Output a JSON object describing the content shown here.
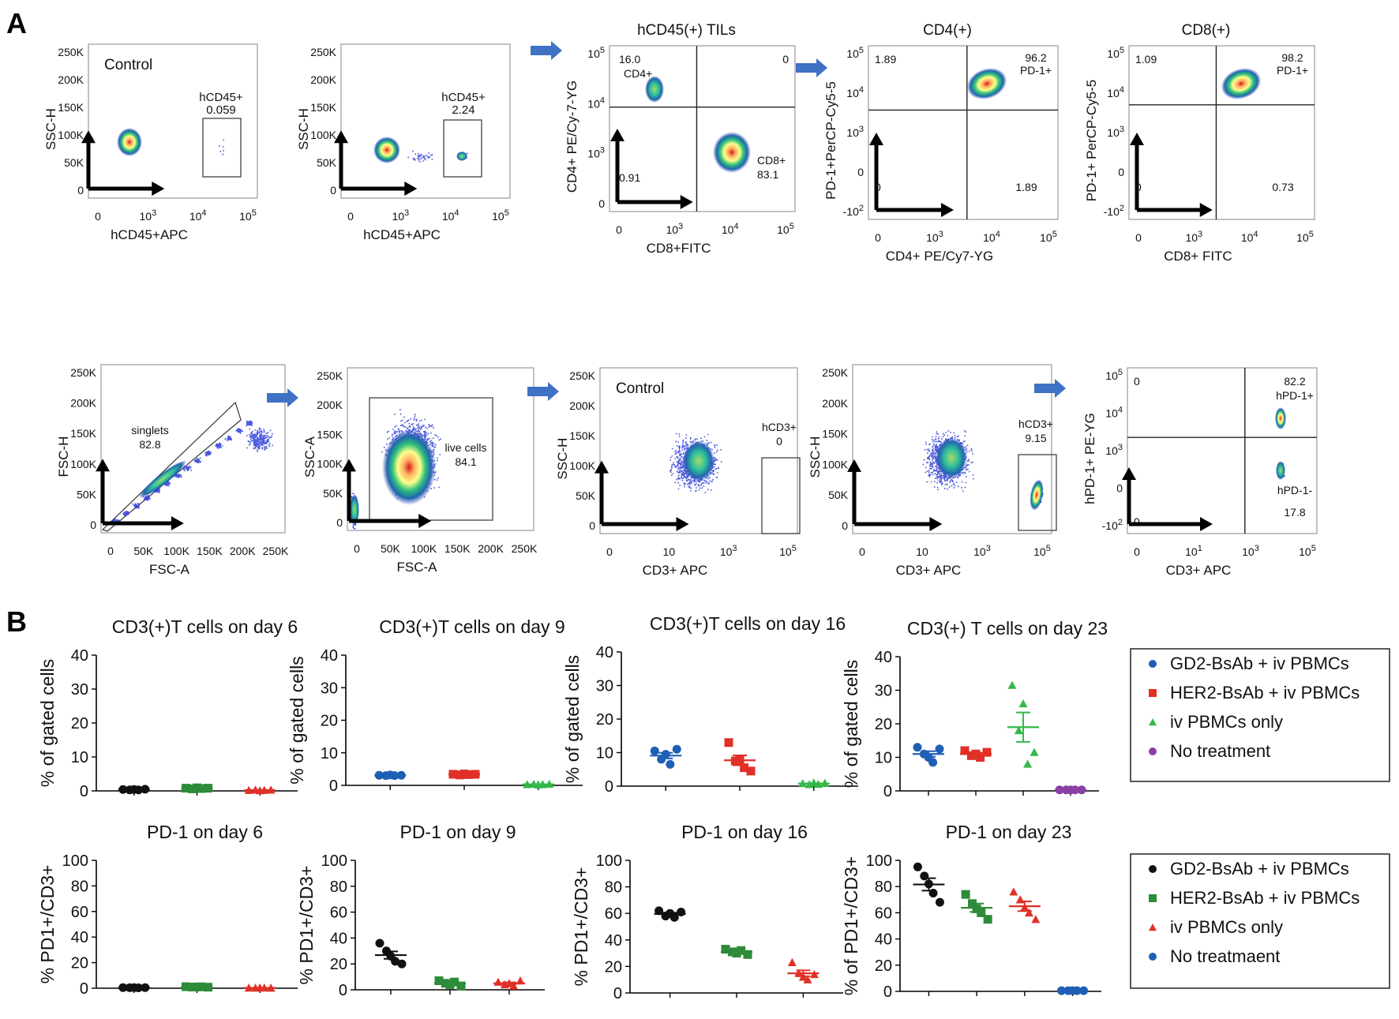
{
  "labels": {
    "panel_a": "A",
    "panel_b": "B"
  },
  "colors": {
    "blue": "#1f5fb4",
    "red": "#e03027",
    "green": "#2e8b3a",
    "green_light": "#35b84a",
    "purple": "#8a3fa6",
    "black": "#111111",
    "arrow": "#3f71c4"
  },
  "flow": {
    "row1": [
      {
        "title": "",
        "note": "Control",
        "xlabel": "hCD45+APC",
        "ylabel": "SSC-H",
        "yticks": [
          "250K",
          "200K",
          "150K",
          "100K",
          "50K",
          "0"
        ],
        "xticks": [
          "0",
          "10^3",
          "10^4",
          "10^5"
        ],
        "gates": [
          {
            "name": "hCD45+",
            "value": "0.059"
          }
        ]
      },
      {
        "title": "",
        "note": "",
        "xlabel": "hCD45+APC",
        "ylabel": "SSC-H",
        "yticks": [
          "250K",
          "200K",
          "150K",
          "100K",
          "50K",
          "0"
        ],
        "xticks": [
          "0",
          "10^3",
          "10^4",
          "10^5"
        ],
        "gates": [
          {
            "name": "hCD45+",
            "value": "2.24"
          }
        ]
      },
      {
        "title": "hCD45(+) TILs",
        "xlabel": "CD8+FITC",
        "ylabel": "CD4+ PE/Cy-7-YG",
        "yticks": [
          "10^5",
          "10^4",
          "10^3",
          "0"
        ],
        "xticks": [
          "0",
          "10^3",
          "10^4",
          "10^5"
        ],
        "quadrants": {
          "ul_value": "16.0",
          "ul_name": "CD4+",
          "ur_value": "0",
          "ll_value": "0.91",
          "lr_name": "CD8+",
          "lr_value": "83.1"
        }
      },
      {
        "title": "CD4(+)",
        "xlabel": "CD4+ PE/Cy7-YG",
        "ylabel": "PD-1+PerCP-Cy5-5",
        "yticks": [
          "10^5",
          "10^4",
          "10^3",
          "0",
          "-10^2"
        ],
        "xticks": [
          "0",
          "10^3",
          "10^4",
          "10^5"
        ],
        "quadrants": {
          "ul_value": "1.89",
          "ur_value": "96.2",
          "ur_name": "PD-1+",
          "ll_value": "0",
          "lr_value": "1.89"
        }
      },
      {
        "title": "CD8(+)",
        "xlabel": "CD8+ FITC",
        "ylabel": "PD-1+ PerCP-Cy5-5",
        "yticks": [
          "10^5",
          "10^4",
          "10^3",
          "0",
          "-10^2"
        ],
        "xticks": [
          "0",
          "10^3",
          "10^4",
          "10^5"
        ],
        "quadrants": {
          "ul_value": "1.09",
          "ur_value": "98.2",
          "ur_name": "PD-1+",
          "ll_value": "0",
          "lr_value": "0.73"
        }
      }
    ],
    "row2": [
      {
        "xlabel": "FSC-A",
        "ylabel": "FSC-H",
        "yticks": [
          "250K",
          "200K",
          "150K",
          "100K",
          "50K",
          "0"
        ],
        "xticks": [
          "0",
          "50K",
          "100K",
          "150K",
          "200K",
          "250K"
        ],
        "gates": [
          {
            "name": "singlets",
            "value": "82.8"
          }
        ]
      },
      {
        "xlabel": "FSC-A",
        "ylabel": "SSC-A",
        "yticks": [
          "250K",
          "200K",
          "150K",
          "100K",
          "50K",
          "0"
        ],
        "xticks": [
          "0",
          "50K",
          "100K",
          "150K",
          "200K",
          "250K"
        ],
        "gates": [
          {
            "name": "live cells",
            "value": "84.1"
          }
        ]
      },
      {
        "note": "Control",
        "xlabel": "CD3+ APC",
        "ylabel": "SSC-H",
        "yticks": [
          "250K",
          "200K",
          "150K",
          "100K",
          "50K",
          "0"
        ],
        "xticks": [
          "0",
          "10",
          "10^3",
          "10^5"
        ],
        "gates": [
          {
            "name": "hCD3+",
            "value": "0"
          }
        ]
      },
      {
        "xlabel": "CD3+ APC",
        "ylabel": "SSC-H",
        "yticks": [
          "250K",
          "200K",
          "150K",
          "100K",
          "50K",
          "0"
        ],
        "xticks": [
          "0",
          "10",
          "10^3",
          "10^5"
        ],
        "gates": [
          {
            "name": "hCD3+",
            "value": "9.15"
          }
        ]
      },
      {
        "xlabel": "CD3+ APC",
        "ylabel": "hPD-1+ PE-YG",
        "yticks": [
          "10^5",
          "10^4",
          "10^3",
          "0",
          "-10^2"
        ],
        "xticks": [
          "0",
          "10^1",
          "10^3",
          "10^5"
        ],
        "quadrants": {
          "ul_value": "0",
          "ur_value": "82.2",
          "ur_name": "hPD-1+",
          "lr_name": "hPD-1-",
          "lr_value": "17.8",
          "ll_value": "0"
        }
      }
    ]
  },
  "chart_data": [
    {
      "type": "scatter",
      "title": "CD3(+)T cells on day 6",
      "ylabel": "% of gated cells",
      "ylim": [
        0,
        40
      ],
      "yticks": [
        0,
        10,
        20,
        30,
        40
      ],
      "series": [
        {
          "name": "GD2-BsAb + iv PBMCs",
          "values": [
            0.4,
            0.3,
            0.4,
            0.3,
            0.5
          ],
          "color_key": "black",
          "marker": "circle"
        },
        {
          "name": "HER2-BsAb + iv PBMCs",
          "values": [
            0.8,
            0.6,
            0.9,
            0.7,
            0.8
          ],
          "color_key": "green",
          "marker": "square"
        },
        {
          "name": "iv PBMCs only",
          "values": [
            0.2,
            0.3,
            0.1,
            0.2,
            0.3
          ],
          "color_key": "red",
          "marker": "triangle"
        }
      ]
    },
    {
      "type": "scatter",
      "title": "CD3(+)T cells on day 9",
      "ylabel": "% of gated cells",
      "ylim": [
        0,
        40
      ],
      "yticks": [
        0,
        10,
        20,
        30,
        40
      ],
      "series": [
        {
          "name": "GD2-BsAb + iv PBMCs",
          "values": [
            3.1,
            3.0,
            3.2,
            3.0,
            3.1
          ],
          "color_key": "blue",
          "marker": "circle"
        },
        {
          "name": "HER2-BsAb + iv PBMCs",
          "values": [
            3.4,
            3.2,
            3.5,
            3.3,
            3.4
          ],
          "color_key": "red",
          "marker": "square"
        },
        {
          "name": "iv PBMCs only",
          "values": [
            0.3,
            0.4,
            0.2,
            0.3,
            0.4
          ],
          "color_key": "green_light",
          "marker": "triangle"
        }
      ]
    },
    {
      "type": "scatter",
      "title": "CD3(+)T cells on day 16",
      "ylabel": "% of gated cells",
      "ylim": [
        0,
        40
      ],
      "yticks": [
        0,
        10,
        20,
        30,
        40
      ],
      "series": [
        {
          "name": "GD2-BsAb + iv PBMCs",
          "values": [
            10.5,
            8.0,
            9.5,
            6.5,
            11.0
          ],
          "color_key": "blue",
          "marker": "circle"
        },
        {
          "name": "HER2-BsAb + iv PBMCs",
          "values": [
            13.0,
            7.5,
            8.0,
            5.5,
            4.5
          ],
          "color_key": "red",
          "marker": "square"
        },
        {
          "name": "iv PBMCs only",
          "values": [
            0.8,
            0.5,
            1.0,
            0.6,
            0.9
          ],
          "color_key": "green_light",
          "marker": "triangle"
        }
      ]
    },
    {
      "type": "scatter",
      "title": "CD3(+) T cells on day 23",
      "ylabel": "% of gated cells",
      "ylim": [
        0,
        40
      ],
      "yticks": [
        0,
        10,
        20,
        30,
        40
      ],
      "series": [
        {
          "name": "GD2-BsAb + iv PBMCs",
          "values": [
            13.0,
            11.0,
            10.0,
            8.5,
            12.5
          ],
          "color_key": "blue",
          "marker": "circle"
        },
        {
          "name": "HER2-BsAb + iv PBMCs",
          "values": [
            12.0,
            10.5,
            11.0,
            10.0,
            11.5
          ],
          "color_key": "red",
          "marker": "square"
        },
        {
          "name": "iv PBMCs only",
          "values": [
            31.5,
            18.0,
            26.0,
            8.0,
            11.5
          ],
          "color_key": "green_light",
          "marker": "triangle"
        },
        {
          "name": "No treatment",
          "values": [
            0.3,
            0.3,
            0.3,
            0.3,
            0.3
          ],
          "color_key": "purple",
          "marker": "circle"
        }
      ]
    },
    {
      "type": "scatter",
      "title": "PD-1 on day 6",
      "ylabel": "% PD1+/CD3+",
      "ylim": [
        0,
        100
      ],
      "yticks": [
        0,
        20,
        40,
        60,
        80,
        100
      ],
      "series": [
        {
          "name": "GD2-BsAb + iv PBMCs",
          "values": [
            0.5,
            0.4,
            0.5,
            0.3,
            0.5
          ],
          "color_key": "black",
          "marker": "circle"
        },
        {
          "name": "HER2-BsAb + iv PBMCs",
          "values": [
            1.2,
            0.9,
            1.0,
            1.1,
            0.8
          ],
          "color_key": "green",
          "marker": "square"
        },
        {
          "name": "iv PBMCs only",
          "values": [
            0.3,
            0.2,
            0.4,
            0.3,
            0.2
          ],
          "color_key": "red",
          "marker": "triangle"
        }
      ]
    },
    {
      "type": "scatter",
      "title": "PD-1 on day 9",
      "ylabel": "% PD1+/CD3+",
      "ylim": [
        0,
        100
      ],
      "yticks": [
        0,
        20,
        40,
        60,
        80,
        100
      ],
      "series": [
        {
          "name": "GD2-BsAb + iv PBMCs",
          "values": [
            36,
            30,
            26,
            22,
            20
          ],
          "color_key": "black",
          "marker": "circle"
        },
        {
          "name": "HER2-BsAb + iv PBMCs",
          "values": [
            7,
            5,
            4,
            6,
            3
          ],
          "color_key": "green",
          "marker": "square"
        },
        {
          "name": "iv PBMCs only",
          "values": [
            6,
            4,
            5,
            3,
            7
          ],
          "color_key": "red",
          "marker": "triangle"
        }
      ]
    },
    {
      "type": "scatter",
      "title": "PD-1 on day 16",
      "ylabel": "% PD1+/CD3+",
      "ylim": [
        0,
        100
      ],
      "yticks": [
        0,
        20,
        40,
        60,
        80,
        100
      ],
      "series": [
        {
          "name": "GD2-BsAb + iv PBMCs",
          "values": [
            62,
            58,
            60,
            57,
            61
          ],
          "color_key": "black",
          "marker": "circle"
        },
        {
          "name": "HER2-BsAb + iv PBMCs",
          "values": [
            33,
            31,
            30,
            32,
            29
          ],
          "color_key": "green",
          "marker": "square"
        },
        {
          "name": "iv PBMCs only",
          "values": [
            23,
            15,
            12,
            10,
            14
          ],
          "color_key": "red",
          "marker": "triangle"
        }
      ]
    },
    {
      "type": "scatter",
      "title": "PD-1 on day 23",
      "ylabel": "% of PD1+/CD3+",
      "ylim": [
        0,
        100
      ],
      "yticks": [
        0,
        20,
        40,
        60,
        80,
        100
      ],
      "series": [
        {
          "name": "GD2-BsAb + iv PBMCs",
          "values": [
            95,
            88,
            82,
            75,
            68
          ],
          "color_key": "black",
          "marker": "circle"
        },
        {
          "name": "HER2-BsAb + iv PBMCs",
          "values": [
            74,
            67,
            63,
            60,
            55
          ],
          "color_key": "green",
          "marker": "square"
        },
        {
          "name": "iv PBMCs only",
          "values": [
            76,
            70,
            64,
            60,
            55
          ],
          "color_key": "red",
          "marker": "triangle"
        },
        {
          "name": "No treatmaent",
          "values": [
            0.5,
            0.5,
            0.5,
            0.5,
            0.5
          ],
          "color_key": "blue",
          "marker": "circle"
        }
      ]
    }
  ],
  "legends": {
    "top": [
      {
        "label": "GD2-BsAb + iv PBMCs",
        "color_key": "blue",
        "marker": "circle"
      },
      {
        "label": "HER2-BsAb + iv PBMCs",
        "color_key": "red",
        "marker": "square"
      },
      {
        "label": "iv PBMCs only",
        "color_key": "green_light",
        "marker": "triangle"
      },
      {
        "label": "No treatment",
        "color_key": "purple",
        "marker": "circle"
      }
    ],
    "bottom": [
      {
        "label": "GD2-BsAb + iv PBMCs",
        "color_key": "black",
        "marker": "circle"
      },
      {
        "label": "HER2-BsAb + iv PBMCs",
        "color_key": "green",
        "marker": "square"
      },
      {
        "label": "iv PBMCs only",
        "color_key": "red",
        "marker": "triangle"
      },
      {
        "label": "No treatmaent",
        "color_key": "blue",
        "marker": "circle"
      }
    ]
  }
}
